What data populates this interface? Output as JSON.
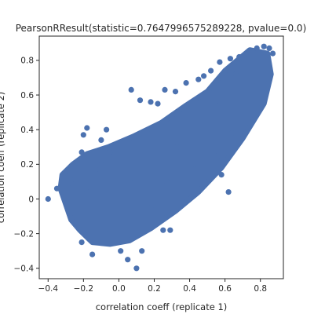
{
  "chart_data": {
    "type": "scatter",
    "title": "PearsonRResult(statistic=0.7647996575289228, pvalue=0.0)",
    "xlabel": "correlation coeff (replicate 1)",
    "ylabel": "correlation coeff (replicate 2)",
    "xlim": [
      -0.45,
      0.93
    ],
    "ylim": [
      -0.46,
      0.94
    ],
    "xticks": [
      -0.4,
      -0.2,
      0.0,
      0.2,
      0.4,
      0.6,
      0.8
    ],
    "yticks": [
      -0.4,
      -0.2,
      0.0,
      0.2,
      0.4,
      0.6,
      0.8
    ],
    "xtick_labels": [
      "−0.4",
      "−0.2",
      "0.0",
      "0.2",
      "0.4",
      "0.6",
      "0.8"
    ],
    "ytick_labels": [
      "−0.4",
      "−0.2",
      "0",
      "0.2",
      "0.4",
      "0.6",
      "0.8"
    ],
    "grid": false,
    "marker_color": "#4c72b0",
    "series": [
      {
        "x": [
          -0.4,
          -0.35,
          -0.29,
          -0.27,
          -0.23,
          -0.21,
          -0.1,
          -0.07,
          -0.18,
          -0.2,
          -0.1,
          -0.05,
          -0.13,
          -0.18,
          -0.06,
          0.07,
          0.12,
          0.18,
          0.22,
          0.26,
          0.32,
          0.38,
          0.45,
          0.48,
          0.52,
          0.57,
          0.63,
          0.68,
          0.73,
          0.78,
          0.82,
          0.85,
          0.87,
          0.66,
          0.55,
          0.59,
          0.5,
          0.33,
          0.36,
          0.05,
          0.01,
          0.1,
          0.13,
          0.25,
          0.29,
          -0.15,
          -0.21,
          0.03,
          0.09,
          0.27,
          0.4,
          0.43,
          0.56,
          0.6,
          0.64,
          0.71,
          0.77,
          0.58,
          0.62,
          0.18
        ],
        "y": [
          0.0,
          0.06,
          0.08,
          0.11,
          0.21,
          0.27,
          0.34,
          0.4,
          0.41,
          0.37,
          0.22,
          0.27,
          0.17,
          0.04,
          -0.2,
          0.63,
          0.57,
          0.56,
          0.55,
          0.63,
          0.62,
          0.67,
          0.69,
          0.71,
          0.74,
          0.79,
          0.81,
          0.82,
          0.85,
          0.87,
          0.88,
          0.87,
          0.84,
          0.72,
          0.54,
          0.47,
          0.42,
          0.3,
          0.35,
          -0.35,
          -0.3,
          -0.4,
          -0.3,
          -0.18,
          -0.18,
          -0.32,
          -0.25,
          -0.02,
          0.1,
          0.1,
          0.12,
          0.2,
          0.25,
          0.31,
          0.38,
          0.49,
          0.65,
          0.14,
          0.04,
          -0.05
        ]
      }
    ]
  }
}
